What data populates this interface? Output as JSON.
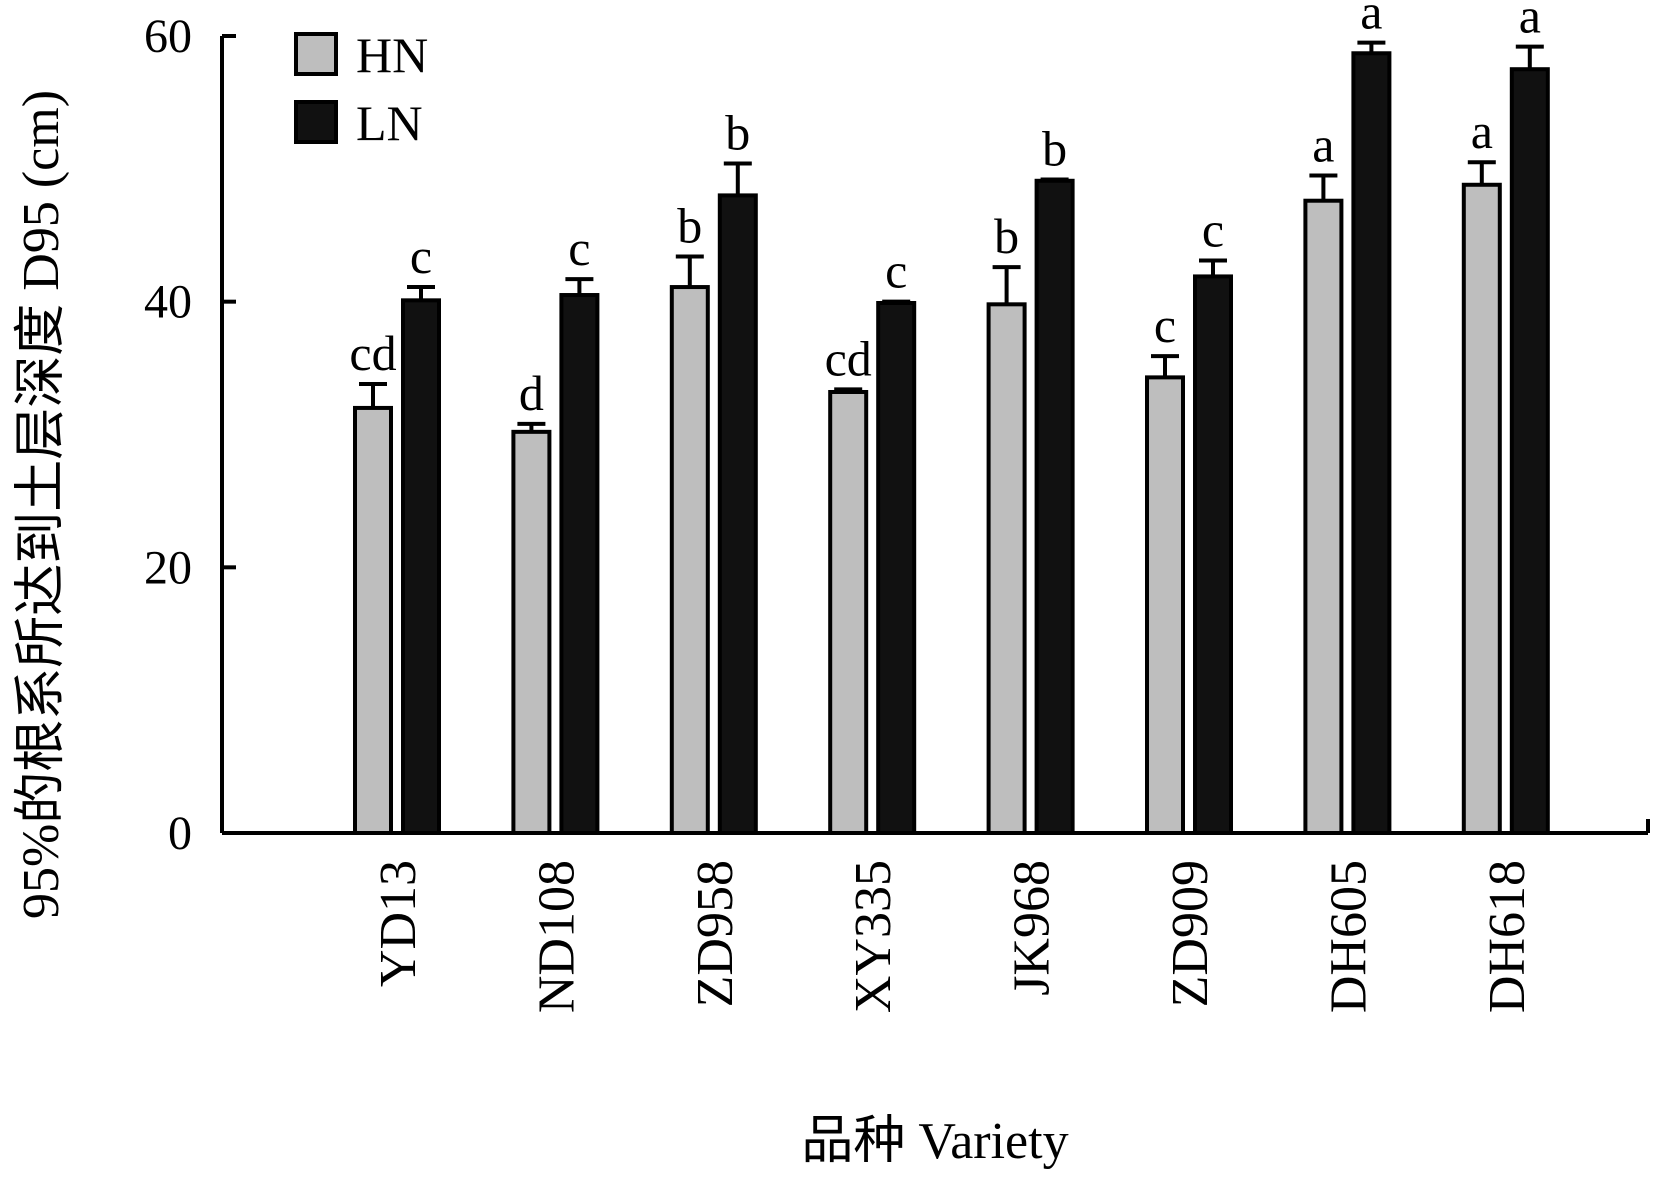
{
  "chart_data": {
    "type": "bar",
    "xlabel": "品种 Variety",
    "ylabel": "95%的根系所达到土层深度 D95 (cm)",
    "ylim": [
      0,
      60
    ],
    "yticks": [
      0,
      20,
      40,
      60
    ],
    "grid": false,
    "legend_placement": "top-left",
    "categories": [
      "YD13",
      "ND108",
      "ZD958",
      "XY335",
      "JK968",
      "ZD909",
      "DH605",
      "DH618"
    ],
    "series": [
      {
        "name": "HN",
        "color": "#bebebe",
        "values": [
          32.0,
          30.2,
          41.1,
          33.2,
          39.8,
          34.3,
          47.6,
          48.8
        ],
        "errors": [
          1.8,
          0.6,
          2.3,
          0.2,
          2.8,
          1.6,
          1.9,
          1.7
        ],
        "significance": [
          "cd",
          "d",
          "b",
          "cd",
          "b",
          "c",
          "a",
          "a"
        ]
      },
      {
        "name": "LN",
        "color": "#111111",
        "values": [
          40.1,
          40.5,
          48.0,
          39.9,
          49.1,
          41.9,
          58.7,
          57.5
        ],
        "errors": [
          1.0,
          1.2,
          2.4,
          0.1,
          0.1,
          1.2,
          0.8,
          1.7
        ],
        "significance": [
          "c",
          "c",
          "b",
          "c",
          "b",
          "c",
          "a",
          "a"
        ]
      }
    ]
  }
}
